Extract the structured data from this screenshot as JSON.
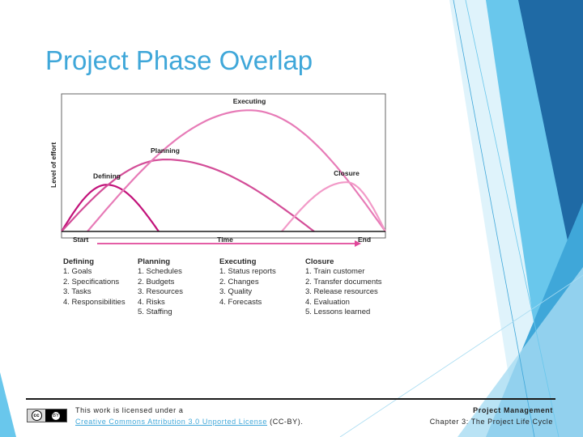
{
  "slide": {
    "title": "Project Phase Overlap",
    "theme_colors": [
      "#3fa7d9",
      "#69c7ec",
      "#1f6aa5",
      "#a7dcf2",
      "#dff3fb"
    ]
  },
  "chart_data": {
    "type": "line",
    "title": "",
    "ylabel": "Level of effort",
    "xlabel": "Time",
    "x_start_label": "Start",
    "x_end_label": "End",
    "x_range": [
      0,
      100
    ],
    "y_range": [
      0,
      100
    ],
    "grid": false,
    "series": [
      {
        "name": "Defining",
        "color": "#c2127a",
        "start": 0,
        "peak": 14,
        "end": 30,
        "peak_value": 37
      },
      {
        "name": "Planning",
        "color": "#d34e98",
        "start": 0,
        "peak": 32,
        "end": 78,
        "peak_value": 57
      },
      {
        "name": "Executing",
        "color": "#e77bb7",
        "start": 8,
        "peak": 58,
        "end": 100,
        "peak_value": 96
      },
      {
        "name": "Closure",
        "color": "#f29ac8",
        "start": 68,
        "peak": 88,
        "end": 100,
        "peak_value": 39
      }
    ]
  },
  "phases": [
    {
      "name": "Defining",
      "items": [
        "1. Goals",
        "2. Specifications",
        "3. Tasks",
        "4. Responsibilities"
      ]
    },
    {
      "name": "Planning",
      "items": [
        "1. Schedules",
        "2. Budgets",
        "3. Resources",
        "4. Risks",
        "5. Staffing"
      ]
    },
    {
      "name": "Executing",
      "items": [
        "1. Status reports",
        "2. Changes",
        "3. Quality",
        "4. Forecasts"
      ]
    },
    {
      "name": "Closure",
      "items": [
        "1. Train customer",
        "2. Transfer documents",
        "3. Release resources",
        "4. Evaluation",
        "5. Lessons learned"
      ]
    }
  ],
  "footer": {
    "license_prefix": "This work is licensed under a",
    "license_link": "Creative Commons Attribution 3.0 Unported License",
    "license_suffix": "(CC-BY).",
    "course_title": "Project Management",
    "chapter": "Chapter 3: The Project Life Cycle",
    "cc_mark": "cc",
    "by_mark": "BY"
  }
}
